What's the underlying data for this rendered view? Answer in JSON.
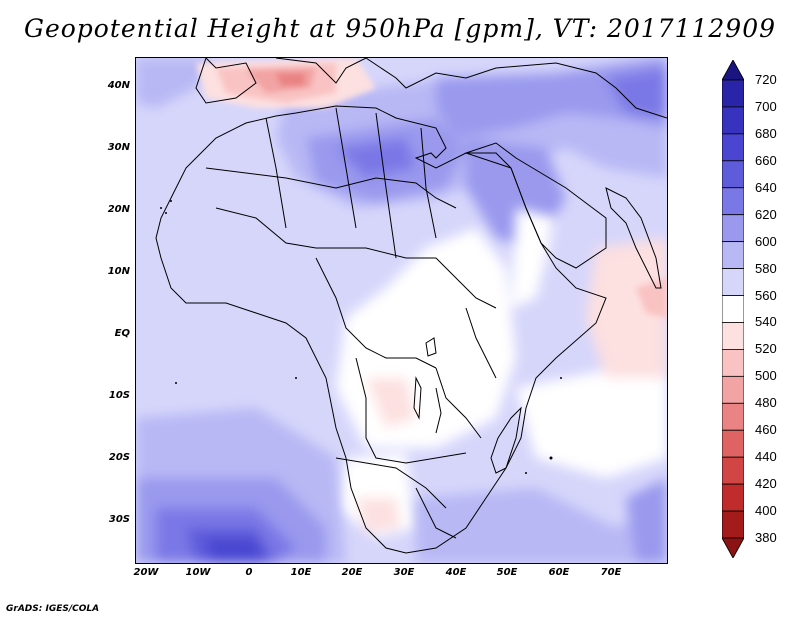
{
  "title": "Geopotential Height at 950hPa [gpm], VT: 2017112909",
  "credit": "GrADS: IGES/COLA",
  "map": {
    "region": "Africa",
    "lon_range": [
      -22,
      80
    ],
    "lat_range": [
      -37,
      45
    ],
    "lat_ticks": [
      {
        "value": 40,
        "label": "40N"
      },
      {
        "value": 30,
        "label": "30N"
      },
      {
        "value": 20,
        "label": "20N"
      },
      {
        "value": 10,
        "label": "10N"
      },
      {
        "value": 0,
        "label": "EQ"
      },
      {
        "value": -10,
        "label": "10S"
      },
      {
        "value": -20,
        "label": "20S"
      },
      {
        "value": -30,
        "label": "30S"
      }
    ],
    "lon_ticks": [
      {
        "value": -20,
        "label": "20W"
      },
      {
        "value": -10,
        "label": "10W"
      },
      {
        "value": 0,
        "label": "0"
      },
      {
        "value": 10,
        "label": "10E"
      },
      {
        "value": 20,
        "label": "20E"
      },
      {
        "value": 30,
        "label": "30E"
      },
      {
        "value": 40,
        "label": "40E"
      },
      {
        "value": 50,
        "label": "50E"
      },
      {
        "value": 60,
        "label": "60E"
      },
      {
        "value": 70,
        "label": "70E"
      }
    ]
  },
  "colorbar": {
    "levels": [
      {
        "value": 720,
        "label": "720",
        "color": "#1f1a8f"
      },
      {
        "value": 700,
        "label": "700",
        "color": "#2a24a8"
      },
      {
        "value": 680,
        "label": "680",
        "color": "#3833bf"
      },
      {
        "value": 660,
        "label": "660",
        "color": "#4a46d1"
      },
      {
        "value": 640,
        "label": "640",
        "color": "#5f5cdc"
      },
      {
        "value": 620,
        "label": "620",
        "color": "#7a78e6"
      },
      {
        "value": 600,
        "label": "600",
        "color": "#9a99ee"
      },
      {
        "value": 580,
        "label": "580",
        "color": "#b8b8f5"
      },
      {
        "value": 560,
        "label": "560",
        "color": "#d6d6fb"
      },
      {
        "value": 540,
        "label": "540",
        "color": "#ffffff"
      },
      {
        "value": 520,
        "label": "520",
        "color": "#fde0e0"
      },
      {
        "value": 500,
        "label": "500",
        "color": "#f9c3c3"
      },
      {
        "value": 480,
        "label": "480",
        "color": "#f2a3a3"
      },
      {
        "value": 460,
        "label": "460",
        "color": "#ea8383"
      },
      {
        "value": 440,
        "label": "440",
        "color": "#df6363"
      },
      {
        "value": 420,
        "label": "420",
        "color": "#d24545"
      },
      {
        "value": 400,
        "label": "400",
        "color": "#c02c2c"
      },
      {
        "value": 380,
        "label": "380",
        "color": "#a31b1b"
      }
    ],
    "top_arrow_color": "#1a1580",
    "bottom_arrow_color": "#8c1313"
  }
}
